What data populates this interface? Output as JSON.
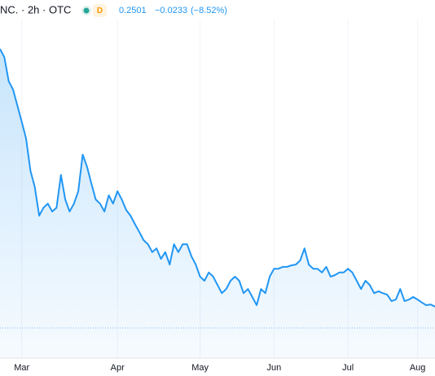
{
  "header": {
    "symbol": "NC. · 2h · OTC",
    "badge": "D",
    "last": "0.2501",
    "change": "−0.0233",
    "change_pct": "(−8.52%)"
  },
  "chart_data": {
    "type": "line",
    "categories": [
      null,
      null,
      null,
      null,
      null,
      "Mar",
      null,
      null,
      null,
      null,
      null,
      null,
      null,
      null,
      null,
      null,
      null,
      null,
      null,
      null,
      null,
      null,
      null,
      null,
      null,
      null,
      null,
      "Apr",
      null,
      null,
      null,
      null,
      null,
      null,
      null,
      null,
      null,
      null,
      null,
      null,
      null,
      null,
      null,
      null,
      null,
      null,
      "May",
      null,
      null,
      null,
      null,
      null,
      null,
      null,
      null,
      null,
      null,
      null,
      null,
      null,
      null,
      null,
      null,
      "Jun",
      null,
      null,
      null,
      null,
      null,
      null,
      null,
      null,
      null,
      null,
      null,
      null,
      null,
      null,
      null,
      null,
      "Jul",
      null,
      null,
      null,
      null,
      null,
      null,
      null,
      null,
      null,
      null,
      null,
      null,
      null,
      null,
      null,
      "Aug",
      null,
      null,
      null,
      null
    ],
    "series": [
      {
        "color": "#2196f3",
        "values": [
          0.935,
          0.913,
          0.849,
          0.827,
          0.784,
          0.741,
          0.697,
          0.611,
          0.568,
          0.492,
          0.513,
          0.524,
          0.503,
          0.513,
          0.6,
          0.535,
          0.503,
          0.524,
          0.557,
          0.654,
          0.622,
          0.578,
          0.535,
          0.524,
          0.503,
          0.546,
          0.524,
          0.557,
          0.535,
          0.507,
          0.492,
          0.47,
          0.449,
          0.427,
          0.416,
          0.395,
          0.405,
          0.377,
          0.395,
          0.362,
          0.416,
          0.395,
          0.416,
          0.416,
          0.384,
          0.362,
          0.33,
          0.319,
          0.341,
          0.33,
          0.308,
          0.286,
          0.297,
          0.319,
          0.33,
          0.319,
          0.286,
          0.297,
          0.276,
          0.254,
          0.297,
          0.286,
          0.33,
          0.351,
          0.351,
          0.356,
          0.356,
          0.36,
          0.362,
          0.373,
          0.405,
          0.362,
          0.351,
          0.351,
          0.341,
          0.356,
          0.33,
          0.334,
          0.341,
          0.341,
          0.351,
          0.341,
          0.319,
          0.297,
          0.319,
          0.308,
          0.286,
          0.291,
          0.286,
          0.282,
          0.265,
          0.269,
          0.297,
          0.265,
          0.269,
          0.276,
          0.269,
          0.261,
          0.254,
          0.256,
          0.2501
        ]
      }
    ],
    "ylim": [
      0.2,
      1.0
    ],
    "grid": true
  }
}
